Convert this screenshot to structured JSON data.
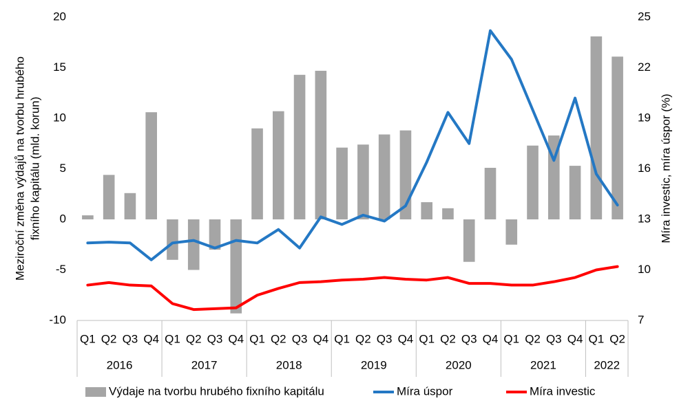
{
  "chart_data": {
    "type": "combo",
    "ylabel": [
      "Meziroční změna výdajů na tvorbu hrubého",
      "fixního kapitálu (mld. korun)"
    ],
    "y2label": "Míra investic, míra úspor (%)",
    "categories": [
      "Q1",
      "Q2",
      "Q3",
      "Q4",
      "Q1",
      "Q2",
      "Q3",
      "Q4",
      "Q1",
      "Q2",
      "Q3",
      "Q4",
      "Q1",
      "Q2",
      "Q3",
      "Q4",
      "Q1",
      "Q2",
      "Q3",
      "Q4",
      "Q1",
      "Q2",
      "Q3",
      "Q4",
      "Q1",
      "Q2"
    ],
    "x_groups": [
      {
        "label": "2016",
        "span": 4
      },
      {
        "label": "2017",
        "span": 4
      },
      {
        "label": "2018",
        "span": 4
      },
      {
        "label": "2019",
        "span": 4
      },
      {
        "label": "2020",
        "span": 4
      },
      {
        "label": "2021",
        "span": 4
      },
      {
        "label": "2022",
        "span": 2
      }
    ],
    "series": [
      {
        "name": "Výdaje na tvorbu hrubého fixního kapitálu",
        "type": "bar",
        "color": "#a5a5a5",
        "values": [
          0.4,
          4.4,
          2.6,
          10.6,
          -4,
          -5,
          -3,
          -9.3,
          9,
          10.7,
          14.3,
          14.7,
          7.1,
          7.4,
          8.4,
          8.8,
          1.7,
          1.1,
          -4.2,
          5.1,
          -2.5,
          7.3,
          8.3,
          5.3,
          18.1,
          16.1
        ]
      },
      {
        "name": "Míra úspor",
        "type": "line",
        "axis": "y2",
        "color": "#2478c4",
        "values": [
          11.6,
          11.65,
          11.6,
          10.6,
          11.6,
          11.75,
          11.3,
          11.75,
          11.6,
          12.4,
          11.3,
          13.15,
          12.7,
          13.25,
          12.9,
          13.8,
          16.4,
          19.35,
          17.5,
          24.2,
          22.5,
          19.5,
          16.5,
          20.2,
          15.7,
          13.85
        ]
      },
      {
        "name": "Míra investic",
        "type": "line",
        "axis": "y2",
        "color": "#ff0000",
        "values": [
          9.1,
          9.25,
          9.1,
          9.05,
          8.0,
          7.65,
          7.7,
          7.75,
          8.5,
          8.9,
          9.25,
          9.3,
          9.4,
          9.45,
          9.55,
          9.45,
          9.4,
          9.55,
          9.2,
          9.2,
          9.1,
          9.1,
          9.3,
          9.55,
          10.0,
          10.2
        ]
      }
    ],
    "ylim": [
      -10,
      20
    ],
    "yticks": [
      -10,
      -5,
      0,
      5,
      10,
      15,
      20
    ],
    "y2lim": [
      7,
      25
    ],
    "y2ticks": [
      7,
      10,
      13,
      16,
      19,
      22,
      25
    ],
    "grid": false,
    "legend": "bottom"
  }
}
